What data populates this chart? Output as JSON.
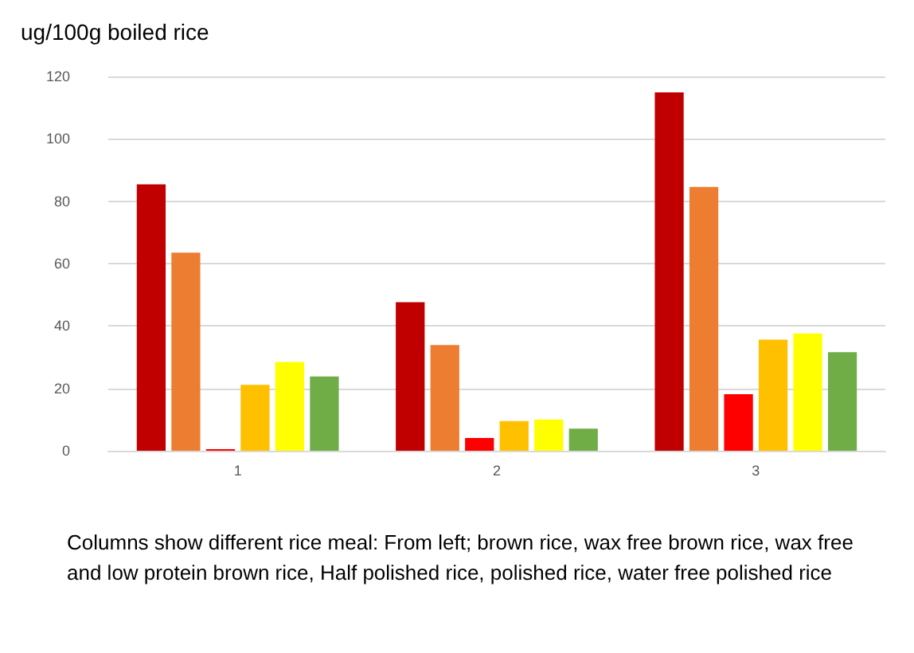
{
  "chart_data": {
    "type": "bar",
    "ylabel": "ug/100g boiled rice",
    "categories": [
      "1",
      "2",
      "3"
    ],
    "series": [
      {
        "color": "#c00000",
        "values": [
          85.4,
          47.6,
          114.9
        ]
      },
      {
        "color": "#ed7d31",
        "values": [
          63.5,
          33.9,
          84.6
        ]
      },
      {
        "color": "#ff0000",
        "values": [
          0.5,
          4.1,
          18.1
        ]
      },
      {
        "color": "#ffc000",
        "values": [
          21.1,
          9.5,
          35.6
        ]
      },
      {
        "color": "#ffff00",
        "values": [
          28.5,
          10,
          37.6
        ]
      },
      {
        "color": "#70ad47",
        "values": [
          23.8,
          7.1,
          31.6
        ]
      }
    ],
    "ylim": [
      0,
      120
    ],
    "yticks": [
      0,
      20,
      40,
      60,
      80,
      100,
      120
    ],
    "grid": "y",
    "annotations": [
      "Columns show different rice meal: From left; brown rice, wax free brown rice, wax free and low protein brown rice, Half polished rice, polished rice, water free polished rice"
    ]
  }
}
